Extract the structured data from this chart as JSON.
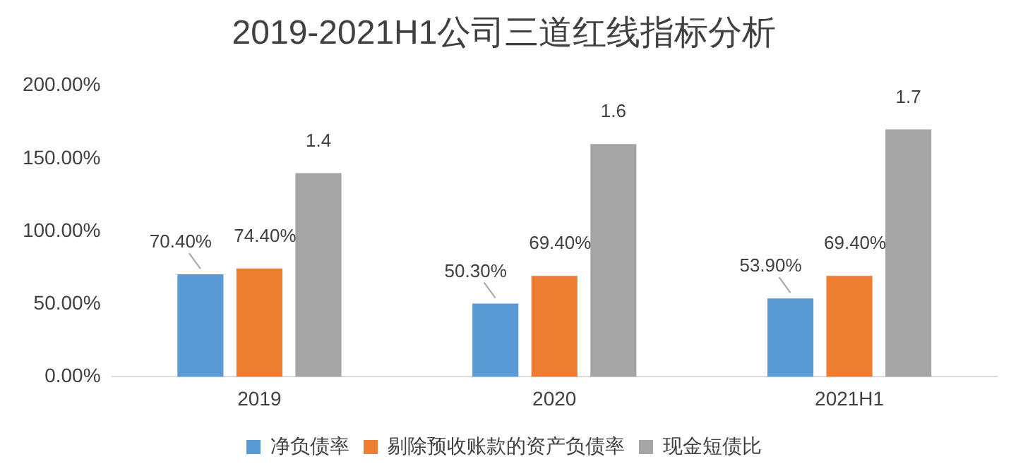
{
  "chart_data": {
    "type": "bar",
    "title": "2019-2021H1公司三道红线指标分析",
    "categories": [
      "2019",
      "2020",
      "2021H1"
    ],
    "series": [
      {
        "name": "净负债率",
        "color": "#5b9bd5",
        "values": [
          70.4,
          50.3,
          53.9
        ],
        "value_labels": [
          "70.40%",
          "50.30%",
          "53.90%"
        ]
      },
      {
        "name": "剔除预收账款的资产负债率",
        "color": "#ed7d31",
        "values": [
          74.4,
          69.4,
          69.4
        ],
        "value_labels": [
          "74.40%",
          "69.40%",
          "69.40%"
        ]
      },
      {
        "name": "现金短债比",
        "color": "#a5a5a5",
        "values": [
          140,
          160,
          170
        ]
      }
    ],
    "annotations": [
      "1.4",
      "1.6",
      "1.7"
    ],
    "ylim": [
      0,
      200
    ],
    "yticks": [
      {
        "value": 0,
        "label": "0.00%"
      },
      {
        "value": 50,
        "label": "50.00%"
      },
      {
        "value": 100,
        "label": "100.00%"
      },
      {
        "value": 150,
        "label": "150.00%"
      },
      {
        "value": 200,
        "label": "200.00%"
      }
    ],
    "grid": false,
    "legend": "bottom"
  }
}
